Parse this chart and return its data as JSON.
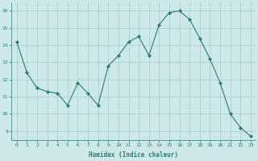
{
  "x": [
    0,
    1,
    2,
    3,
    4,
    5,
    6,
    7,
    8,
    9,
    10,
    11,
    12,
    13,
    14,
    15,
    16,
    17,
    18,
    19,
    20,
    21,
    22,
    23
  ],
  "y": [
    14.2,
    12.4,
    11.5,
    11.3,
    11.2,
    10.5,
    11.8,
    11.2,
    10.5,
    12.8,
    13.4,
    14.2,
    14.5,
    13.4,
    15.2,
    15.9,
    16.0,
    15.5,
    14.4,
    13.2,
    11.8,
    10.0,
    9.2,
    8.7
  ],
  "xlabel": "Humidex (Indice chaleur)",
  "ylim": [
    8.5,
    16.5
  ],
  "xlim": [
    -0.5,
    23.5
  ],
  "yticks": [
    9,
    10,
    11,
    12,
    13,
    14,
    15,
    16
  ],
  "xticks": [
    0,
    1,
    2,
    3,
    4,
    5,
    6,
    7,
    8,
    9,
    10,
    11,
    12,
    13,
    14,
    15,
    16,
    17,
    18,
    19,
    20,
    21,
    22,
    23
  ],
  "line_color": "#2e7d6e",
  "marker": "D",
  "marker_size": 2.0,
  "bg_color": "#cce8e8",
  "grid_color": "#aacccc",
  "xlabel_fontsize": 5.5,
  "tick_fontsize": 4.5
}
